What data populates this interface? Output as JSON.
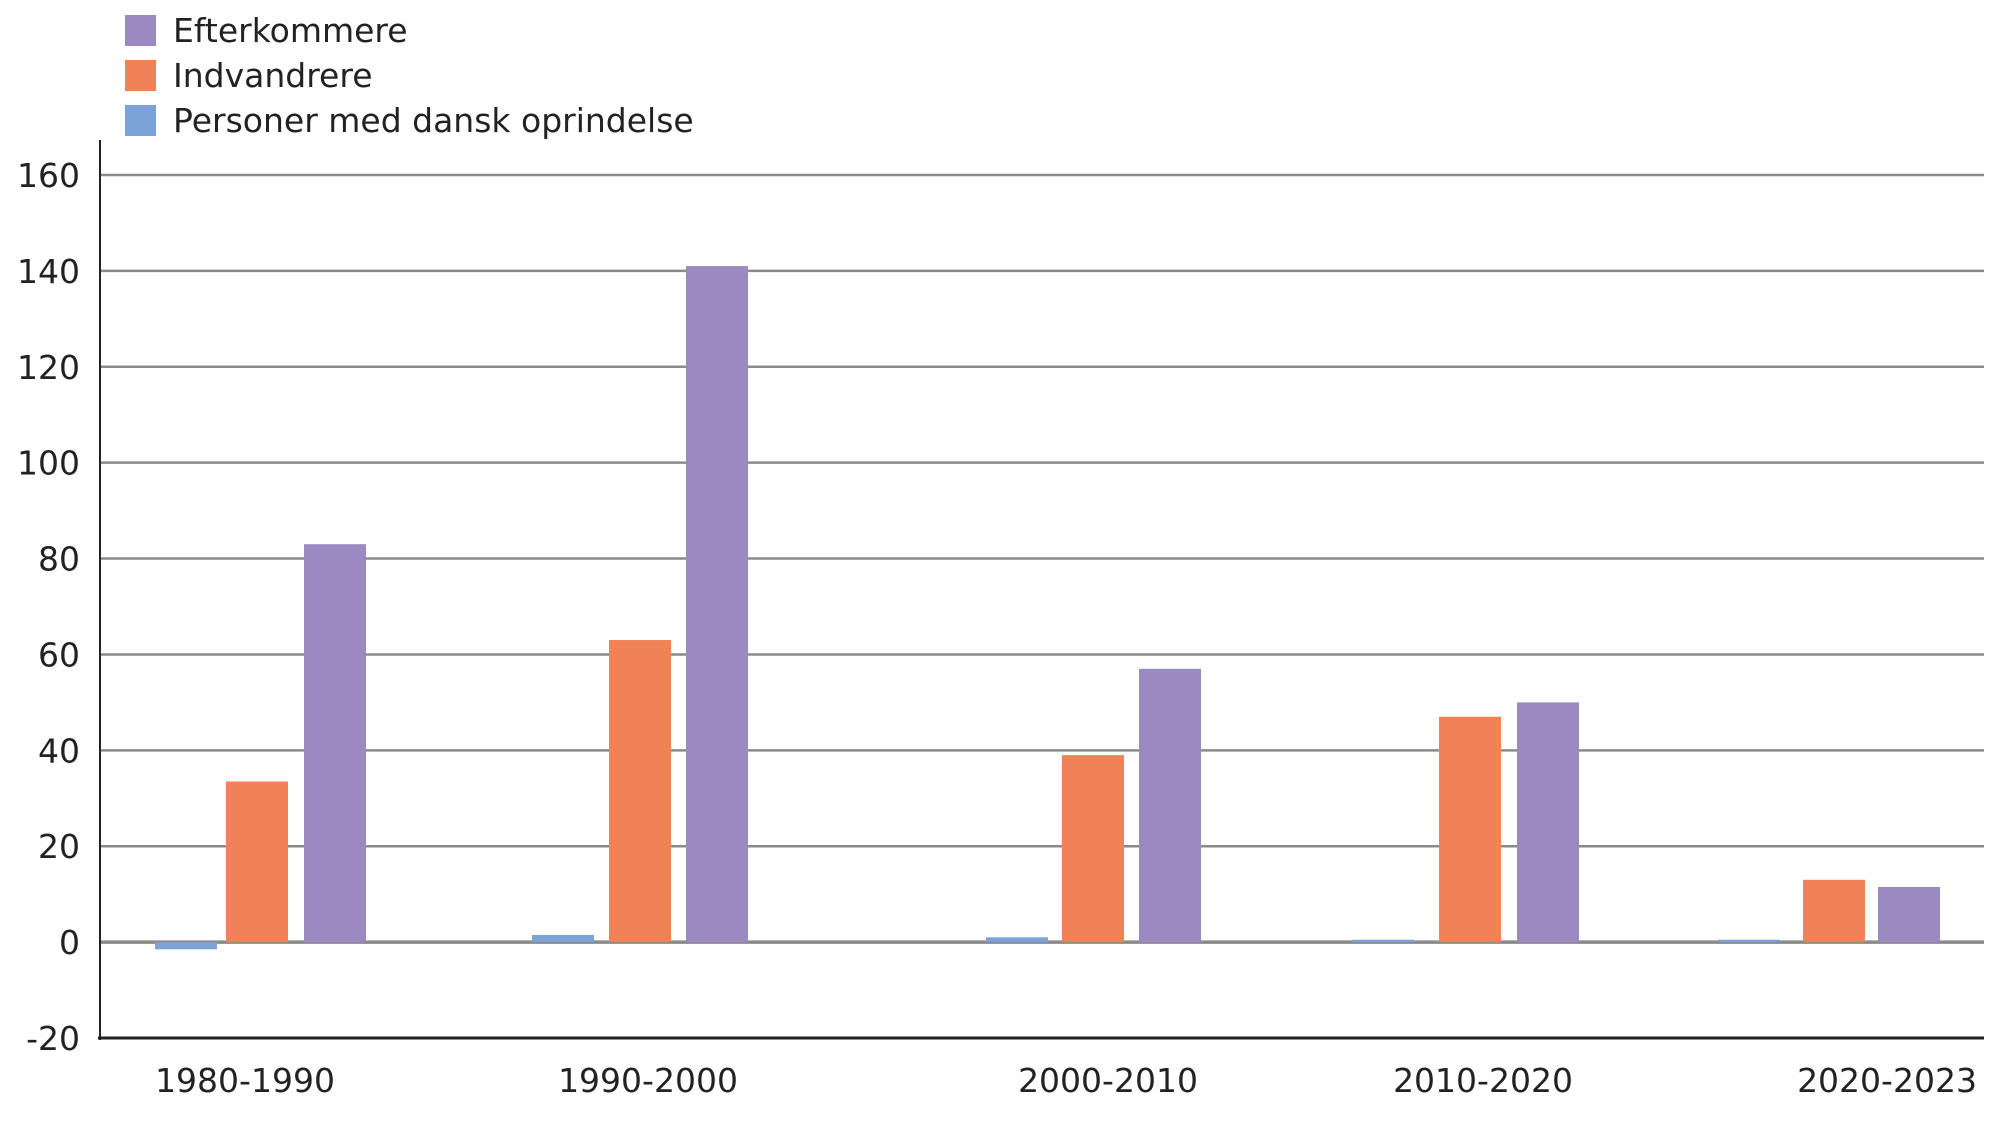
{
  "chart_data": {
    "type": "bar",
    "categories": [
      "1980-1990",
      "1990-2000",
      "2000-2010",
      "2010-2020",
      "2020-2023"
    ],
    "series": [
      {
        "name": "Personer med dansk oprindelse",
        "color": "#7ba3d8",
        "values": [
          -1.5,
          1.5,
          1,
          0.5,
          0.5
        ]
      },
      {
        "name": "Indvandrere",
        "color": "#ef8355",
        "values": [
          33.5,
          63,
          39,
          47,
          13
        ]
      },
      {
        "name": "Efterkommere",
        "color": "#9b8ac1",
        "values": [
          83,
          141,
          57,
          50,
          11.5
        ]
      }
    ],
    "legend_order": [
      "Efterkommere",
      "Indvandrere",
      "Personer med dansk oprindelse"
    ],
    "legend_placement": "top-left",
    "ylim": [
      -20,
      160
    ],
    "yticks": [
      "160",
      "140",
      "120",
      "100",
      "80",
      "60",
      "40",
      "20",
      "0",
      "-20"
    ],
    "grid": true,
    "title": "",
    "xlabel": "",
    "ylabel": ""
  }
}
